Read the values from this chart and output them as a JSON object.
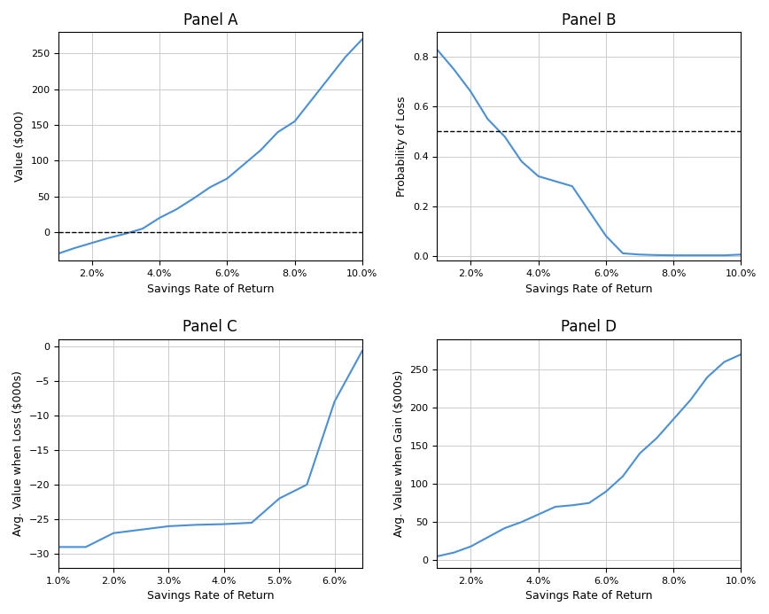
{
  "panel_A": {
    "title": "Panel A",
    "xlabel": "Savings Rate of Return",
    "ylabel": "Value ($000)",
    "x": [
      0.01,
      0.015,
      0.02,
      0.025,
      0.03,
      0.035,
      0.04,
      0.045,
      0.05,
      0.055,
      0.06,
      0.065,
      0.07,
      0.075,
      0.08,
      0.085,
      0.09,
      0.095,
      0.1
    ],
    "y": [
      -30,
      -22,
      -15,
      -8,
      -2,
      5,
      20,
      32,
      47,
      63,
      75,
      95,
      115,
      140,
      155,
      185,
      215,
      245,
      270
    ],
    "hline": 0,
    "xlim": [
      0.01,
      0.1
    ],
    "ylim": [
      -40,
      280
    ],
    "xticks": [
      0.02,
      0.04,
      0.06,
      0.08,
      0.1
    ],
    "xtick_labels": [
      "2.0%",
      "4.0%",
      "6.0%",
      "8.0%",
      "10.0%"
    ]
  },
  "panel_B": {
    "title": "Panel B",
    "xlabel": "Savings Rate of Return",
    "ylabel": "Probability of Loss",
    "x": [
      0.01,
      0.015,
      0.02,
      0.025,
      0.03,
      0.035,
      0.04,
      0.045,
      0.05,
      0.055,
      0.06,
      0.065,
      0.07,
      0.075,
      0.08,
      0.085,
      0.09,
      0.095,
      0.1
    ],
    "y": [
      0.83,
      0.75,
      0.66,
      0.55,
      0.48,
      0.38,
      0.32,
      0.3,
      0.28,
      0.18,
      0.08,
      0.01,
      0.005,
      0.003,
      0.002,
      0.002,
      0.002,
      0.002,
      0.005
    ],
    "hline": 0.5,
    "xlim": [
      0.01,
      0.1
    ],
    "ylim": [
      -0.02,
      0.9
    ],
    "xticks": [
      0.02,
      0.04,
      0.06,
      0.08,
      0.1
    ],
    "xtick_labels": [
      "2.0%",
      "4.0%",
      "6.0%",
      "8.0%",
      "10.0%"
    ]
  },
  "panel_C": {
    "title": "Panel C",
    "xlabel": "Savings Rate of Return",
    "ylabel": "Avg. Value when Loss ($000s)",
    "x": [
      0.01,
      0.015,
      0.02,
      0.025,
      0.03,
      0.035,
      0.04,
      0.045,
      0.05,
      0.055,
      0.06,
      0.065
    ],
    "y": [
      -29,
      -29,
      -27,
      -26.5,
      -26,
      -25.8,
      -25.7,
      -25.5,
      -22,
      -20,
      -8,
      -0.7
    ],
    "xlim": [
      0.01,
      0.065
    ],
    "ylim": [
      -32,
      1
    ],
    "xticks": [
      0.01,
      0.02,
      0.03,
      0.04,
      0.05,
      0.06
    ],
    "xtick_labels": [
      "1.0%",
      "2.0%",
      "3.0%",
      "4.0%",
      "5.0%",
      "6.0%"
    ]
  },
  "panel_D": {
    "title": "Panel D",
    "xlabel": "Savings Rate of Return",
    "ylabel": "Avg. Value when Gain ($000s)",
    "x": [
      0.01,
      0.015,
      0.02,
      0.025,
      0.03,
      0.035,
      0.04,
      0.045,
      0.05,
      0.055,
      0.06,
      0.065,
      0.07,
      0.075,
      0.08,
      0.085,
      0.09,
      0.095,
      0.1
    ],
    "y": [
      5,
      10,
      18,
      30,
      42,
      50,
      60,
      70,
      72,
      75,
      90,
      110,
      140,
      160,
      185,
      210,
      240,
      260,
      270
    ],
    "xlim": [
      0.01,
      0.1
    ],
    "ylim": [
      -10,
      290
    ],
    "xticks": [
      0.02,
      0.04,
      0.06,
      0.08,
      0.1
    ],
    "xtick_labels": [
      "2.0%",
      "4.0%",
      "6.0%",
      "8.0%",
      "10.0%"
    ]
  },
  "line_color": "#4A90D9",
  "dashed_color": "black",
  "background": "white",
  "grid_color": "#cccccc"
}
